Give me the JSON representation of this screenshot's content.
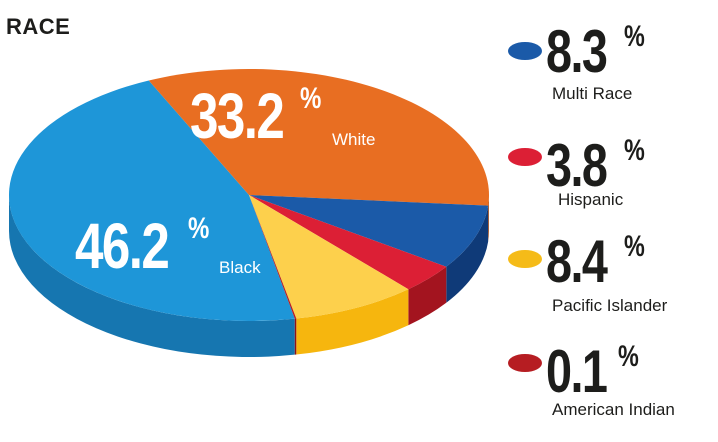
{
  "title": "RACE",
  "percent_sign": "%",
  "chart_data": {
    "type": "pie",
    "title": "RACE",
    "slices": [
      {
        "label": "Black",
        "value": 46.2,
        "display": "46.2",
        "color": "#1e96d8",
        "side": "#1676b0"
      },
      {
        "label": "White",
        "value": 33.2,
        "display": "33.2",
        "color": "#e86e22",
        "side": "#b85416"
      },
      {
        "label": "Multi Race",
        "value": 8.3,
        "display": "8.3",
        "color": "#1b5aa8",
        "side": "#0f3a78"
      },
      {
        "label": "Hispanic",
        "value": 3.8,
        "display": "3.8",
        "color": "#dc1f35",
        "side": "#a3141f"
      },
      {
        "label": "Pacific Islander",
        "value": 8.4,
        "display": "8.4",
        "color": "#fdd04c",
        "side": "#f6b60e"
      },
      {
        "label": "American Indian",
        "value": 0.1,
        "display": "0.1",
        "color": "#b61d22",
        "side": "#8d1218"
      }
    ],
    "legend": [
      {
        "label": "Multi Race",
        "display": "8.3",
        "color": "#1b5aa8"
      },
      {
        "label": "Hispanic",
        "display": "3.8",
        "color": "#dc1f35"
      },
      {
        "label": "Pacific Islander",
        "display": "8.4",
        "color": "#f5bb18"
      },
      {
        "label": "American Indian",
        "display": "0.1",
        "color": "#b61d22"
      }
    ],
    "legend_placement": "right"
  }
}
